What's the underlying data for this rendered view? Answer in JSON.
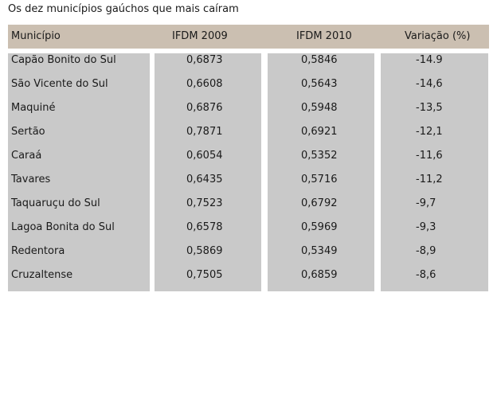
{
  "title": "Os dez municípios gaúchos que mais caíram",
  "chart_data": {
    "type": "table",
    "columns": [
      "Município",
      "IFDM 2009",
      "IFDM 2010",
      "Variação (%)"
    ],
    "rows": [
      [
        "Capão Bonito do Sul",
        "0,6873",
        "0,5846",
        "-14.9"
      ],
      [
        "São Vicente do Sul",
        "0,6608",
        "0,5643",
        "-14,6"
      ],
      [
        "Maquiné",
        "0,6876",
        "0,5948",
        "-13,5"
      ],
      [
        "Sertão",
        "0,7871",
        "0,6921",
        "-12,1"
      ],
      [
        "Caraá",
        "0,6054",
        "0,5352",
        "-11,6"
      ],
      [
        "Tavares",
        "0,6435",
        "0,5716",
        "-11,2"
      ],
      [
        "Taquaruçu do Sul",
        "0,7523",
        "0,6792",
        "-9,7"
      ],
      [
        "Lagoa Bonita do Sul",
        "0,6578",
        "0,5969",
        "-9,3"
      ],
      [
        "Redentora",
        "0,5869",
        "0,5349",
        "-8,9"
      ],
      [
        "Cruzaltense",
        "0,7505",
        "0,6859",
        "-8,6"
      ]
    ]
  },
  "colors": {
    "header_bg": "#cbbfb1",
    "cell_bg": "#c9c9c9",
    "text": "#1a1a1a"
  }
}
